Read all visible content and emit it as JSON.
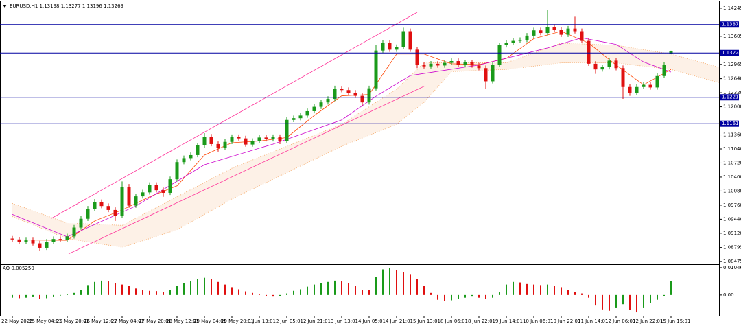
{
  "chart_data": [
    {
      "type": "candlestick",
      "title": "EURUSD,H1  1.13198 1.13277 1.13196 1.13269",
      "categories": [
        "22 May 2020",
        null,
        null,
        null,
        "25 May 04:01",
        null,
        null,
        null,
        "25 May 20:01",
        null,
        null,
        null,
        "26 May 12:01",
        null,
        null,
        null,
        "27 May 04:01",
        null,
        null,
        null,
        "27 May 20:01",
        null,
        null,
        null,
        "28 May 12:01",
        null,
        null,
        null,
        "29 May 04:01",
        null,
        null,
        null,
        "29 May 20:01",
        null,
        null,
        null,
        "1 Jun 13:01",
        null,
        null,
        null,
        "2 Jun 05:01",
        null,
        null,
        null,
        "2 Jun 21:01",
        null,
        null,
        null,
        "3 Jun 13:01",
        null,
        null,
        null,
        "4 Jun 05:01",
        null,
        null,
        null,
        "4 Jun 21:01",
        null,
        null,
        null,
        "5 Jun 13:01",
        null,
        null,
        null,
        "8 Jun 06:01",
        null,
        null,
        null,
        "8 Jun 22:01",
        null,
        null,
        null,
        "9 Jun 14:01",
        null,
        null,
        null,
        "10 Jun 06:01",
        null,
        null,
        null,
        "10 Jun 22:01",
        null,
        null,
        null,
        "11 Jun 14:01",
        null,
        null,
        null,
        "12 Jun 06:01",
        null,
        null,
        null,
        "12 Jun 22:01",
        null,
        null,
        null,
        "15 Jun 15:01"
      ],
      "open": [
        1.09,
        1.0898,
        1.0892,
        1.0896,
        1.0889,
        1.0879,
        1.0893,
        1.0899,
        1.0897,
        1.0905,
        1.0925,
        1.0945,
        1.0968,
        1.0983,
        1.0974,
        1.0965,
        1.0952,
        1.1018,
        1.0975,
        1.0996,
        1.1005,
        1.1022,
        1.101,
        1.1004,
        1.1035,
        1.1074,
        1.1083,
        1.109,
        1.1112,
        1.1132,
        1.1115,
        1.1106,
        1.112,
        1.1131,
        1.1128,
        1.1114,
        1.1122,
        1.113,
        1.1126,
        1.1131,
        1.1122,
        1.117,
        1.1174,
        1.118,
        1.119,
        1.12,
        1.121,
        1.1218,
        1.124,
        1.1238,
        1.1232,
        1.1225,
        1.121,
        1.1242,
        1.1328,
        1.1345,
        1.133,
        1.1336,
        1.1372,
        1.133,
        1.1296,
        1.1292,
        1.1298,
        1.1294,
        1.13,
        1.1304,
        1.1296,
        1.1301,
        1.1294,
        1.1288,
        1.1258,
        1.1296,
        1.134,
        1.1345,
        1.135,
        1.1352,
        1.1362,
        1.1374,
        1.1368,
        1.1382,
        1.1375,
        1.1364,
        1.1378,
        1.1372,
        1.135,
        1.1298,
        1.1285,
        1.129,
        1.1305,
        1.1288,
        1.1245,
        1.1232,
        1.1245,
        1.125,
        1.1244,
        1.127,
        1.13198
      ],
      "high": [
        1.0906,
        1.0904,
        1.0902,
        1.0902,
        1.0895,
        1.0899,
        1.0905,
        1.0905,
        1.0911,
        1.0931,
        1.0951,
        1.0974,
        1.099,
        1.0989,
        1.098,
        1.0971,
        1.103,
        1.1024,
        1.1002,
        1.1011,
        1.1028,
        1.1028,
        1.1016,
        1.1041,
        1.108,
        1.1089,
        1.1096,
        1.1118,
        1.114,
        1.1138,
        1.1121,
        1.1126,
        1.1137,
        1.1137,
        1.1134,
        1.1128,
        1.1136,
        1.1136,
        1.1137,
        1.1137,
        1.1176,
        1.118,
        1.1186,
        1.1196,
        1.1206,
        1.1216,
        1.1224,
        1.1248,
        1.1246,
        1.1244,
        1.1238,
        1.1231,
        1.1248,
        1.134,
        1.1351,
        1.1351,
        1.1342,
        1.138,
        1.1378,
        1.1336,
        1.1302,
        1.1304,
        1.1304,
        1.1306,
        1.131,
        1.131,
        1.1307,
        1.1307,
        1.13,
        1.1294,
        1.1302,
        1.1346,
        1.1351,
        1.1356,
        1.1358,
        1.1368,
        1.138,
        1.138,
        1.142,
        1.1388,
        1.1381,
        1.1384,
        1.1405,
        1.1378,
        1.1356,
        1.1304,
        1.1296,
        1.1311,
        1.1311,
        1.1294,
        1.1251,
        1.1251,
        1.1256,
        1.1256,
        1.1276,
        1.1301,
        1.13277
      ],
      "low": [
        1.0893,
        1.0887,
        1.0887,
        1.0884,
        1.0872,
        1.0874,
        1.0888,
        1.0892,
        1.0892,
        1.09,
        1.092,
        1.094,
        1.0963,
        1.0969,
        1.096,
        1.094,
        1.0947,
        1.097,
        1.097,
        1.0991,
        1.1,
        1.1005,
        1.0995,
        1.0999,
        1.103,
        1.1069,
        1.1078,
        1.1085,
        1.1107,
        1.111,
        1.1098,
        1.1101,
        1.1115,
        1.1123,
        1.1109,
        1.1109,
        1.1117,
        1.1121,
        1.1121,
        1.1115,
        1.1117,
        1.1165,
        1.1169,
        1.1175,
        1.1185,
        1.1195,
        1.1205,
        1.1213,
        1.1233,
        1.1227,
        1.122,
        1.1203,
        1.1205,
        1.1237,
        1.1323,
        1.1325,
        1.1325,
        1.1331,
        1.1325,
        1.1288,
        1.1287,
        1.1287,
        1.1289,
        1.1289,
        1.1295,
        1.1291,
        1.1291,
        1.1289,
        1.1283,
        1.124,
        1.1253,
        1.1291,
        1.1335,
        1.134,
        1.1345,
        1.1347,
        1.1357,
        1.1363,
        1.1363,
        1.137,
        1.1359,
        1.1359,
        1.1367,
        1.1345,
        1.1293,
        1.1275,
        1.128,
        1.1285,
        1.1283,
        1.1218,
        1.1225,
        1.1227,
        1.124,
        1.1239,
        1.1239,
        1.1265,
        1.13196
      ],
      "close": [
        1.0898,
        1.0892,
        1.0896,
        1.0889,
        1.0879,
        1.0893,
        1.0899,
        1.0897,
        1.0905,
        1.0925,
        1.0945,
        1.0968,
        1.0983,
        1.0974,
        1.0965,
        1.0952,
        1.1018,
        1.0975,
        1.0996,
        1.1005,
        1.1022,
        1.101,
        1.1004,
        1.1035,
        1.1074,
        1.1083,
        1.109,
        1.1112,
        1.1132,
        1.1115,
        1.1106,
        1.112,
        1.1131,
        1.1128,
        1.1114,
        1.1122,
        1.113,
        1.1126,
        1.1131,
        1.1122,
        1.117,
        1.1174,
        1.118,
        1.119,
        1.12,
        1.121,
        1.1218,
        1.124,
        1.1238,
        1.1232,
        1.1225,
        1.121,
        1.1242,
        1.1328,
        1.1345,
        1.133,
        1.1336,
        1.1372,
        1.133,
        1.1296,
        1.1292,
        1.1298,
        1.1294,
        1.13,
        1.1304,
        1.1296,
        1.1301,
        1.1294,
        1.1288,
        1.1258,
        1.1296,
        1.134,
        1.1345,
        1.135,
        1.1352,
        1.1362,
        1.1374,
        1.1368,
        1.1382,
        1.1375,
        1.1364,
        1.1378,
        1.1372,
        1.135,
        1.1298,
        1.1285,
        1.129,
        1.1305,
        1.1288,
        1.1245,
        1.1232,
        1.1245,
        1.125,
        1.1244,
        1.127,
        1.1295,
        1.13269
      ],
      "up_color": "#1a9a1a",
      "down_color": "#e01010",
      "ylim": [
        1.0843,
        1.144
      ],
      "yticks": [
        1.14245,
        1.13605,
        1.12965,
        {
          "value": 1.1264,
          "label": "1.12640"
        },
        {
          "value": 1.1232,
          "label": "1.12320"
        },
        {
          "value": 1.12,
          "label": "1.12000"
        },
        {
          "value": 1.1136,
          "label": "1.11360"
        },
        {
          "value": 1.1104,
          "label": "1.11040"
        },
        {
          "value": 1.1072,
          "label": "1.10720"
        },
        {
          "value": 1.104,
          "label": "1.10400"
        },
        {
          "value": 1.1008,
          "label": "1.10080"
        },
        {
          "value": 1.0976,
          "label": "1.09760"
        },
        {
          "value": 1.0944,
          "label": "1.09440"
        },
        {
          "value": 1.0912,
          "label": "1.09120"
        },
        1.08795,
        1.08475
      ],
      "series": [
        {
          "color": "#ff4400",
          "x": [
            0,
            8,
            12,
            16,
            20,
            24,
            28,
            32,
            36,
            40,
            44,
            48,
            52,
            56,
            60,
            64,
            68,
            72,
            76,
            80,
            84,
            88,
            92,
            96
          ],
          "values": [
            1.0897,
            1.0896,
            1.094,
            1.0965,
            1.0995,
            1.102,
            1.109,
            1.1118,
            1.1122,
            1.113,
            1.118,
            1.1225,
            1.1228,
            1.132,
            1.132,
            1.1298,
            1.1296,
            1.131,
            1.1355,
            1.1372,
            1.1345,
            1.1295,
            1.125,
            1.1285
          ]
        },
        {
          "color": "#cc00cc",
          "x": [
            0,
            8,
            18,
            28,
            38,
            48,
            53,
            58,
            68,
            78,
            83,
            88,
            92,
            96
          ],
          "values": [
            1.0955,
            1.0904,
            1.0974,
            1.1068,
            1.1115,
            1.117,
            1.1224,
            1.1271,
            1.1295,
            1.1334,
            1.1357,
            1.1342,
            1.1302,
            1.1279
          ]
        }
      ],
      "cloud": {
        "color": "#f4a460",
        "x": [
          0,
          8,
          16,
          24,
          32,
          40,
          48,
          56,
          60,
          64,
          72,
          80,
          88,
          96,
          103
        ],
        "upper": [
          1.098,
          1.0935,
          1.093,
          1.0995,
          1.106,
          1.111,
          1.116,
          1.124,
          1.13,
          1.13,
          1.13,
          1.1345,
          1.134,
          1.132,
          1.129
        ],
        "lower": [
          1.095,
          1.09,
          1.088,
          1.092,
          1.099,
          1.105,
          1.111,
          1.116,
          1.121,
          1.128,
          1.1285,
          1.13,
          1.13,
          1.1285,
          1.1255
        ]
      },
      "trendlines": [
        {
          "color": "#ff3399",
          "x": [
            5.7,
            59
          ],
          "values": [
            1.0946,
            1.1415
          ]
        },
        {
          "color": "#ff3399",
          "x": [
            8.2,
            60.2
          ],
          "values": [
            1.0865,
            1.1248
          ]
        }
      ],
      "levels": {
        "color": "#0000a0",
        "values": [
          1.13873,
          1.13224,
          1.12216,
          1.11615
        ]
      }
    },
    {
      "type": "bar",
      "title": "AO 0.005250",
      "values": [
        -0.001,
        -0.0012,
        -0.001,
        -0.0008,
        -0.0014,
        -0.0012,
        -0.0008,
        -0.0002,
        0.0002,
        0.0008,
        0.002,
        0.0038,
        0.005,
        0.0055,
        0.0052,
        0.0045,
        0.004,
        0.0036,
        0.0025,
        0.0018,
        0.0016,
        0.0015,
        0.0012,
        0.002,
        0.0035,
        0.0045,
        0.0052,
        0.006,
        0.0066,
        0.006,
        0.005,
        0.004,
        0.003,
        0.0022,
        0.0014,
        0.0008,
        0.0002,
        -0.0004,
        -0.0006,
        -0.0004,
        0.0006,
        0.0016,
        0.0022,
        0.0032,
        0.004,
        0.0046,
        0.005,
        0.0055,
        0.0052,
        0.0045,
        0.0035,
        0.002,
        0.0018,
        0.007,
        0.0098,
        0.0102,
        0.0096,
        0.0088,
        0.008,
        0.006,
        0.0035,
        0.0008,
        -0.0018,
        -0.0022,
        -0.002,
        -0.0014,
        -0.001,
        -0.0006,
        -0.001,
        -0.0014,
        -0.001,
        0.001,
        0.004,
        0.005,
        0.0048,
        0.0042,
        0.004,
        0.0038,
        0.004,
        0.0036,
        0.003,
        0.002,
        0.0012,
        0.0006,
        -0.001,
        -0.004,
        -0.0055,
        -0.006,
        -0.005,
        -0.0035,
        -0.0058,
        -0.0066,
        -0.005,
        -0.003,
        -0.0018,
        -0.0004,
        0.00525
      ],
      "up_color": "#1a9a1a",
      "down_color": "#e01010",
      "ylim": [
        -0.0079,
        0.0115
      ],
      "yticks": [
        0.010469,
        {
          "value": 0,
          "label": "0.00"
        }
      ]
    }
  ]
}
